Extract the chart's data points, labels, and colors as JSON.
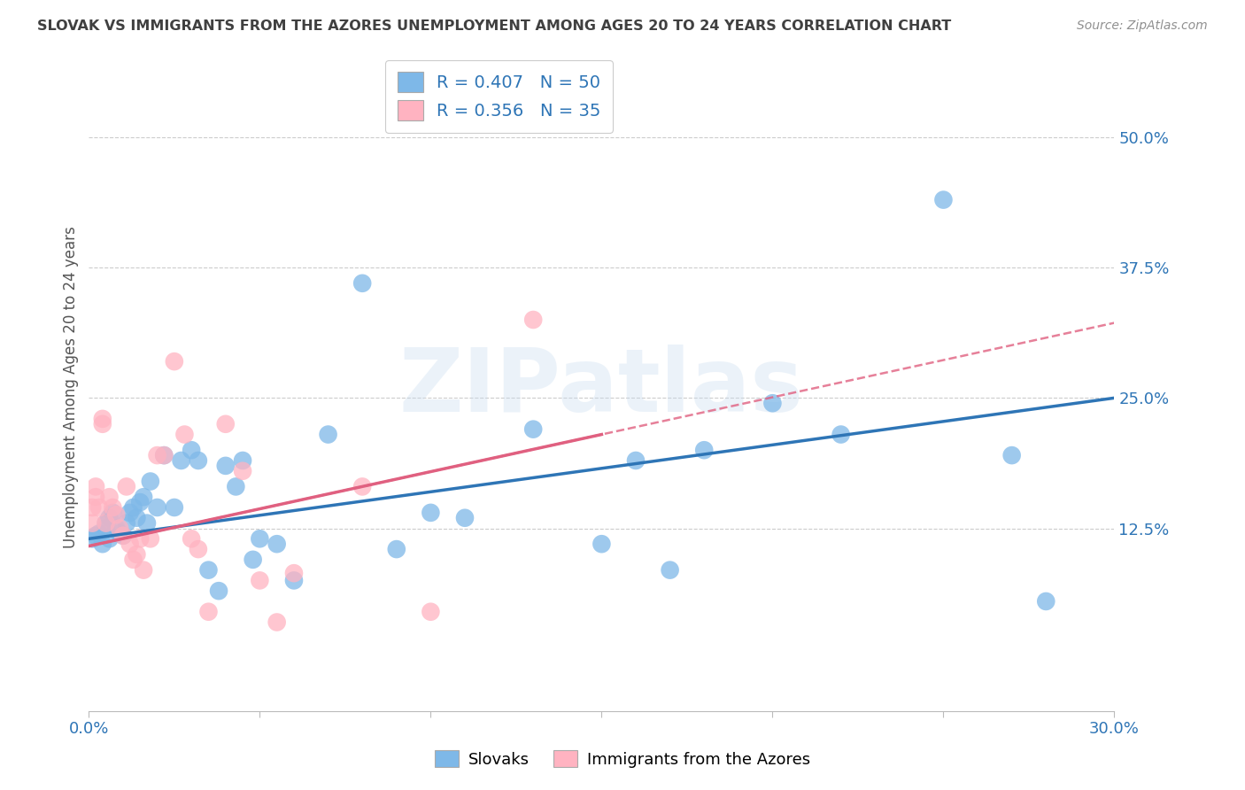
{
  "title": "SLOVAK VS IMMIGRANTS FROM THE AZORES UNEMPLOYMENT AMONG AGES 20 TO 24 YEARS CORRELATION CHART",
  "source": "Source: ZipAtlas.com",
  "ylabel": "Unemployment Among Ages 20 to 24 years",
  "legend_label1": "Slovaks",
  "legend_label2": "Immigrants from the Azores",
  "R1": 0.407,
  "N1": 50,
  "R2": 0.356,
  "N2": 35,
  "xlim": [
    0.0,
    0.3
  ],
  "ylim": [
    -0.05,
    0.57
  ],
  "xticks": [
    0.0,
    0.05,
    0.1,
    0.15,
    0.2,
    0.25,
    0.3
  ],
  "ytick_right_vals": [
    0.125,
    0.25,
    0.375,
    0.5
  ],
  "ytick_right_labels": [
    "12.5%",
    "25.0%",
    "37.5%",
    "50.0%"
  ],
  "color_blue": "#7EB8E8",
  "color_pink": "#FFB3C1",
  "color_blue_line": "#2E75B6",
  "color_pink_line": "#E06080",
  "color_title": "#404040",
  "color_source": "#909090",
  "color_axis_ticks": "#2E75B6",
  "watermark": "ZIPatlas",
  "blue_scatter_x": [
    0.001,
    0.002,
    0.003,
    0.004,
    0.005,
    0.005,
    0.006,
    0.006,
    0.007,
    0.008,
    0.009,
    0.01,
    0.011,
    0.012,
    0.013,
    0.014,
    0.015,
    0.016,
    0.017,
    0.018,
    0.02,
    0.022,
    0.025,
    0.027,
    0.03,
    0.032,
    0.035,
    0.038,
    0.04,
    0.043,
    0.045,
    0.048,
    0.05,
    0.055,
    0.06,
    0.07,
    0.08,
    0.09,
    0.1,
    0.11,
    0.13,
    0.15,
    0.16,
    0.17,
    0.18,
    0.2,
    0.22,
    0.25,
    0.27,
    0.28
  ],
  "blue_scatter_y": [
    0.115,
    0.118,
    0.12,
    0.11,
    0.125,
    0.13,
    0.115,
    0.135,
    0.14,
    0.125,
    0.12,
    0.118,
    0.13,
    0.14,
    0.145,
    0.135,
    0.15,
    0.155,
    0.13,
    0.17,
    0.145,
    0.195,
    0.145,
    0.19,
    0.2,
    0.19,
    0.085,
    0.065,
    0.185,
    0.165,
    0.19,
    0.095,
    0.115,
    0.11,
    0.075,
    0.215,
    0.36,
    0.105,
    0.14,
    0.135,
    0.22,
    0.11,
    0.19,
    0.085,
    0.2,
    0.245,
    0.215,
    0.44,
    0.195,
    0.055
  ],
  "pink_scatter_x": [
    0.001,
    0.001,
    0.002,
    0.002,
    0.003,
    0.004,
    0.004,
    0.005,
    0.006,
    0.007,
    0.008,
    0.009,
    0.01,
    0.011,
    0.012,
    0.013,
    0.014,
    0.015,
    0.016,
    0.018,
    0.02,
    0.022,
    0.025,
    0.028,
    0.03,
    0.032,
    0.035,
    0.04,
    0.045,
    0.05,
    0.055,
    0.06,
    0.08,
    0.1,
    0.13
  ],
  "pink_scatter_y": [
    0.13,
    0.145,
    0.155,
    0.165,
    0.145,
    0.225,
    0.23,
    0.13,
    0.155,
    0.145,
    0.138,
    0.125,
    0.118,
    0.165,
    0.11,
    0.095,
    0.1,
    0.115,
    0.085,
    0.115,
    0.195,
    0.195,
    0.285,
    0.215,
    0.115,
    0.105,
    0.045,
    0.225,
    0.18,
    0.075,
    0.035,
    0.082,
    0.165,
    0.045,
    0.325
  ],
  "blue_line_x": [
    0.0,
    0.3
  ],
  "blue_line_y_start": 0.115,
  "blue_line_y_end": 0.25,
  "pink_line_x": [
    0.0,
    0.15
  ],
  "pink_line_y_start": 0.108,
  "pink_line_y_end": 0.215
}
